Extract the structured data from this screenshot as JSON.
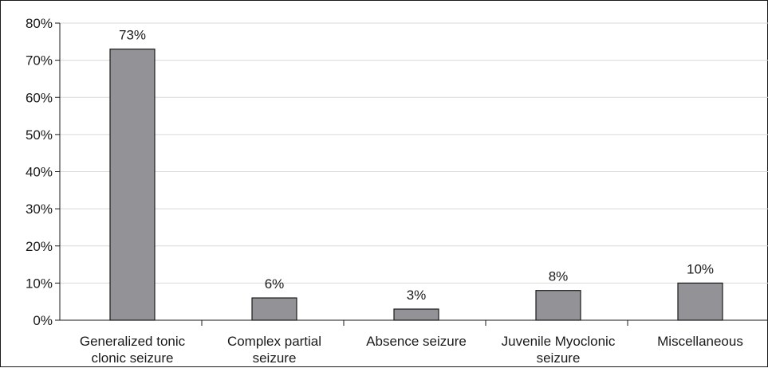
{
  "chart_data": {
    "type": "bar",
    "categories": [
      [
        "Generalized tonic",
        "clonic seizure"
      ],
      [
        "Complex partial",
        "seizure"
      ],
      [
        "Absence seizure"
      ],
      [
        "Juvenile Myoclonic",
        "seizure"
      ],
      [
        "Miscellaneous"
      ]
    ],
    "values": [
      73,
      6,
      3,
      8,
      10
    ],
    "data_labels": [
      "73%",
      "6%",
      "3%",
      "8%",
      "10%"
    ],
    "y_ticks": [
      "0%",
      "10%",
      "20%",
      "30%",
      "40%",
      "50%",
      "60%",
      "70%",
      "80%"
    ],
    "ylim": [
      0,
      80
    ],
    "grid": true,
    "legend": "none",
    "colors": {
      "bar_fill": "#929297",
      "bar_stroke": "#1a1a1a",
      "grid": "#d9d9d9",
      "axis": "#1a1a1a",
      "text": "#1a1a1a"
    }
  }
}
